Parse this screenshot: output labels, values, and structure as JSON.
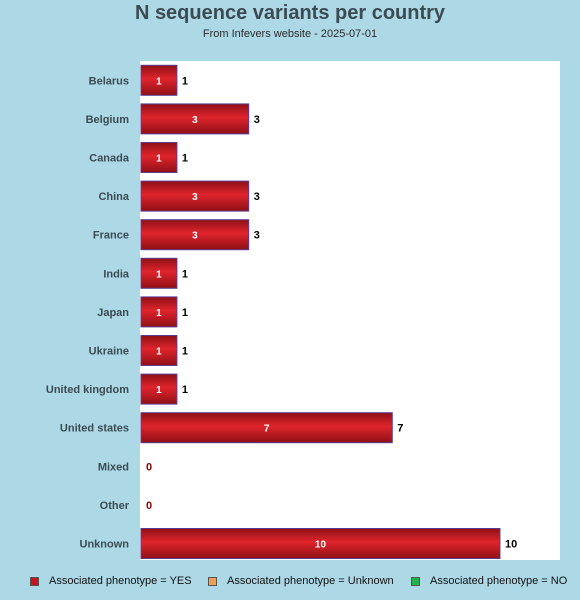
{
  "chart_data": {
    "type": "bar",
    "orientation": "horizontal",
    "title": "N sequence variants per country",
    "subtitle": "From Infevers website - 2025-07-01",
    "categories": [
      "Belarus",
      "Belgium",
      "Canada",
      "China",
      "France",
      "India",
      "Japan",
      "Ukraine",
      "United kingdom",
      "United states",
      "Mixed",
      "Other",
      "Unknown"
    ],
    "series": [
      {
        "name": "Associated phenotype = YES",
        "color": "#c8141c",
        "values": [
          1,
          3,
          1,
          3,
          3,
          1,
          1,
          1,
          1,
          7,
          0,
          0,
          10
        ]
      },
      {
        "name": "Associated phenotype = Unknown",
        "color": "#f0a050",
        "values": [
          0,
          0,
          0,
          0,
          0,
          0,
          0,
          0,
          0,
          0,
          0,
          0,
          0
        ]
      },
      {
        "name": "Associated phenotype = NO",
        "color": "#22b14c",
        "values": [
          0,
          0,
          0,
          0,
          0,
          0,
          0,
          0,
          0,
          0,
          0,
          0,
          0
        ]
      }
    ],
    "totals": [
      1,
      3,
      1,
      3,
      3,
      1,
      1,
      1,
      1,
      7,
      0,
      0,
      10
    ],
    "xlim": [
      0,
      11.7
    ],
    "grid": false,
    "legend_position": "bottom"
  }
}
